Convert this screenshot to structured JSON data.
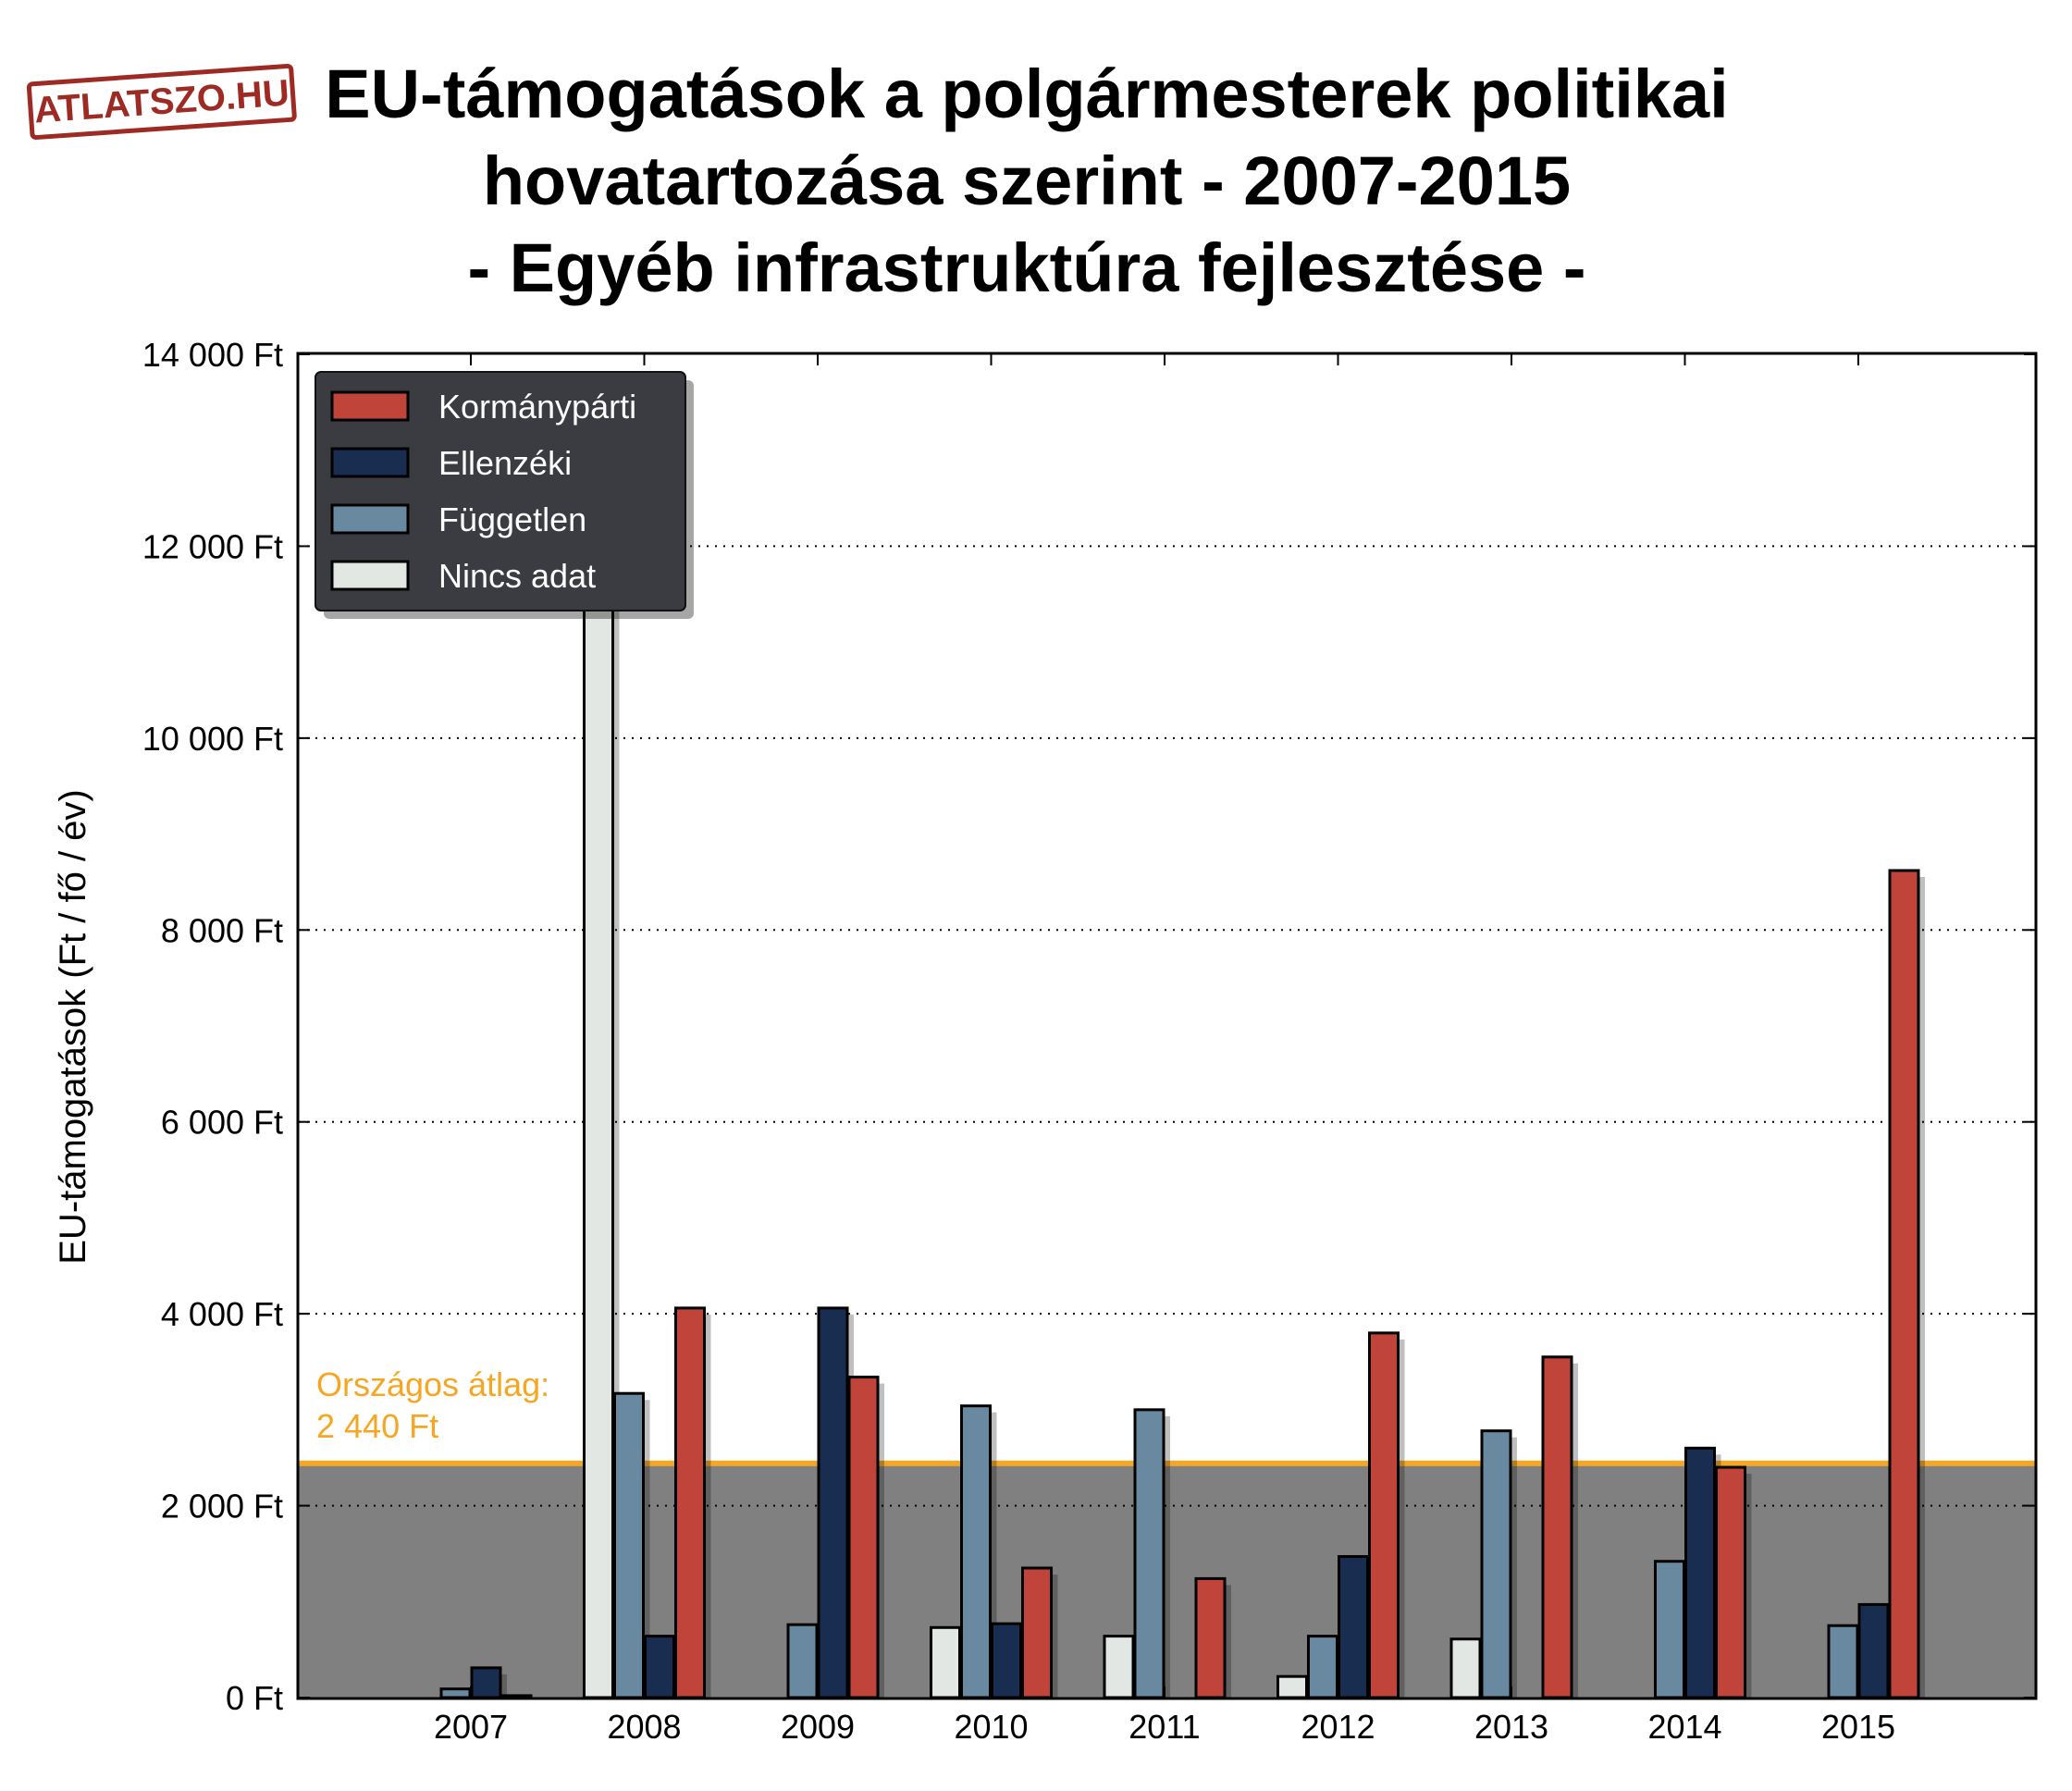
{
  "logo": {
    "text": "ATLATSZO.HU",
    "color": "#9e2a24"
  },
  "title_lines": [
    "EU-támogatások a polgármesterek politikai",
    "hovatartozása szerint - 2007-2015",
    "- Egyéb infrastruktúra fejlesztése -"
  ],
  "chart_data": {
    "type": "bar",
    "title": "EU-támogatások a polgármesterek politikai hovatartozása szerint - 2007-2015 - Egyéb infrastruktúra fejlesztése -",
    "xlabel": "",
    "ylabel": "EU-támogatások (Ft / fő / év)",
    "ylim": [
      0,
      14000
    ],
    "yticks": [
      0,
      2000,
      4000,
      6000,
      8000,
      10000,
      12000,
      14000
    ],
    "ytick_labels": [
      "0 Ft",
      "2 000 Ft",
      "4 000 Ft",
      "6 000 Ft",
      "8 000 Ft",
      "10 000 Ft",
      "12 000 Ft",
      "14 000 Ft"
    ],
    "categories": [
      "2007",
      "2008",
      "2009",
      "2010",
      "2011",
      "2012",
      "2013",
      "2014",
      "2015"
    ],
    "series": [
      {
        "name": "Nincs adat",
        "color": "#e3e7e4",
        "values": [
          0,
          13500,
          0,
          730,
          640,
          220,
          610,
          0,
          0
        ]
      },
      {
        "name": "Független",
        "color": "#6889a0",
        "values": [
          90,
          3170,
          760,
          3040,
          3000,
          640,
          2780,
          1420,
          750
        ]
      },
      {
        "name": "Ellenzéki",
        "color": "#182d50",
        "values": [
          310,
          640,
          4060,
          770,
          0,
          1470,
          0,
          2600,
          970
        ]
      },
      {
        "name": "Kormánypárti",
        "color": "#c0443a",
        "values": [
          20,
          4060,
          3340,
          1350,
          1240,
          3800,
          3550,
          2400,
          8620
        ]
      }
    ],
    "legend_order": [
      "Kormánypárti",
      "Ellenzéki",
      "Független",
      "Nincs adat"
    ],
    "legend_position": "top-left",
    "grid": "horizontal dotted",
    "reference_line": {
      "value": 2440,
      "label_line1": "Országos átlag:",
      "label_line2": "2 440 Ft",
      "color": "#f5a623",
      "shade_color": "#808080"
    }
  }
}
